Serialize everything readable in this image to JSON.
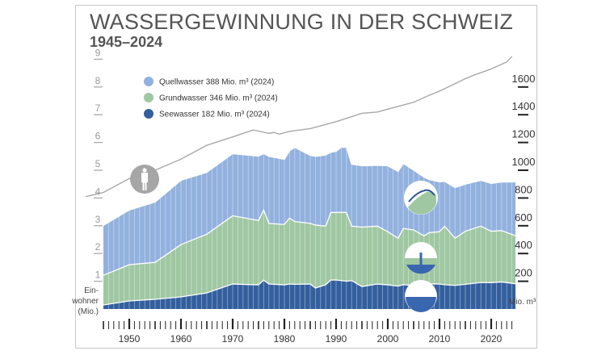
{
  "header": {
    "title": "WASSERGEWINNUNG IN DER SCHWEIZ",
    "subtitle": "1945–2024"
  },
  "chart_data": {
    "type": "area",
    "stacked": true,
    "title": "WASSERGEWINNUNG IN DER SCHWEIZ",
    "subtitle": "1945–2024",
    "x_range": [
      1945,
      2024
    ],
    "x_ticks": [
      "1950",
      "1960",
      "1970",
      "1980",
      "1990",
      "2000",
      "2010",
      "2020"
    ],
    "right_axis": {
      "label": "Mio. m³",
      "range": [
        0,
        1800
      ],
      "ticks": [
        "200",
        "400",
        "600",
        "800",
        "1000",
        "1200",
        "1400",
        "1600"
      ]
    },
    "left_axis": {
      "label_lines": [
        "Ein-",
        "wohner",
        "(Mio.)"
      ],
      "range": [
        0,
        9
      ],
      "ticks": [
        "1",
        "2",
        "3",
        "4",
        "5",
        "6",
        "7",
        "8",
        "9"
      ]
    },
    "legend_position": "top-left",
    "x": [
      1945,
      1950,
      1955,
      1960,
      1965,
      1970,
      1975,
      1976,
      1977,
      1980,
      1981,
      1982,
      1985,
      1986,
      1988,
      1989,
      1990,
      1991,
      1992,
      1993,
      1995,
      1998,
      2000,
      2002,
      2003,
      2005,
      2007,
      2008,
      2010,
      2011,
      2013,
      2015,
      2018,
      2020,
      2022,
      2024
    ],
    "series": [
      {
        "name": "Seewasser",
        "legend": "Seewasser 182 Mio. m³ (2024)",
        "color": "#335f9e",
        "values": [
          29,
          58,
          70,
          87,
          116,
          180,
          174,
          209,
          180,
          174,
          180,
          178,
          180,
          151,
          175,
          209,
          209,
          205,
          200,
          205,
          162,
          180,
          174,
          165,
          175,
          170,
          180,
          182,
          180,
          175,
          170,
          178,
          191,
          190,
          195,
          182
        ]
      },
      {
        "name": "Grundwasser",
        "legend": "Grundwasser 346 Mio. m³ (2024)",
        "color": "#9fc7a2",
        "values": [
          214,
          261,
          266,
          377,
          423,
          492,
          464,
          504,
          437,
          435,
          475,
          452,
          437,
          454,
          422,
          487,
          487,
          491,
          496,
          392,
          428,
          417,
          383,
          345,
          405,
          400,
          347,
          368,
          377,
          422,
          340,
          382,
          406,
          370,
          370,
          346
        ]
      },
      {
        "name": "Quellwasser",
        "legend": "Quellwasser 388 Mio. m³ (2024)",
        "color": "#92b1de",
        "values": [
          360,
          394,
          435,
          463,
          446,
          447,
          463,
          407,
          483,
          469,
          485,
          535,
          490,
          495,
          513,
          434,
          440,
          469,
          469,
          446,
          442,
          438,
          475,
          481,
          469,
          430,
          423,
          383,
          359,
          323,
          365,
          340,
          330,
          345,
          350,
          388
        ]
      }
    ],
    "population": {
      "axis": "left",
      "color": "#a8a8a8",
      "x": [
        1945,
        1950,
        1955,
        1960,
        1965,
        1970,
        1974,
        1977,
        1978,
        1979,
        1981,
        1985,
        1990,
        1995,
        1998,
        2000,
        2005,
        2008,
        2010,
        2015,
        2017,
        2020,
        2023,
        2024
      ],
      "values": [
        4.2,
        4.7,
        5.0,
        5.4,
        5.9,
        6.2,
        6.45,
        6.33,
        6.36,
        6.3,
        6.4,
        6.5,
        6.75,
        7.05,
        7.1,
        7.2,
        7.45,
        7.7,
        7.85,
        8.3,
        8.45,
        8.65,
        8.9,
        9.1
      ]
    },
    "icons": [
      "person-icon",
      "spring-icon",
      "groundwater-well-icon",
      "lake-icon"
    ]
  }
}
